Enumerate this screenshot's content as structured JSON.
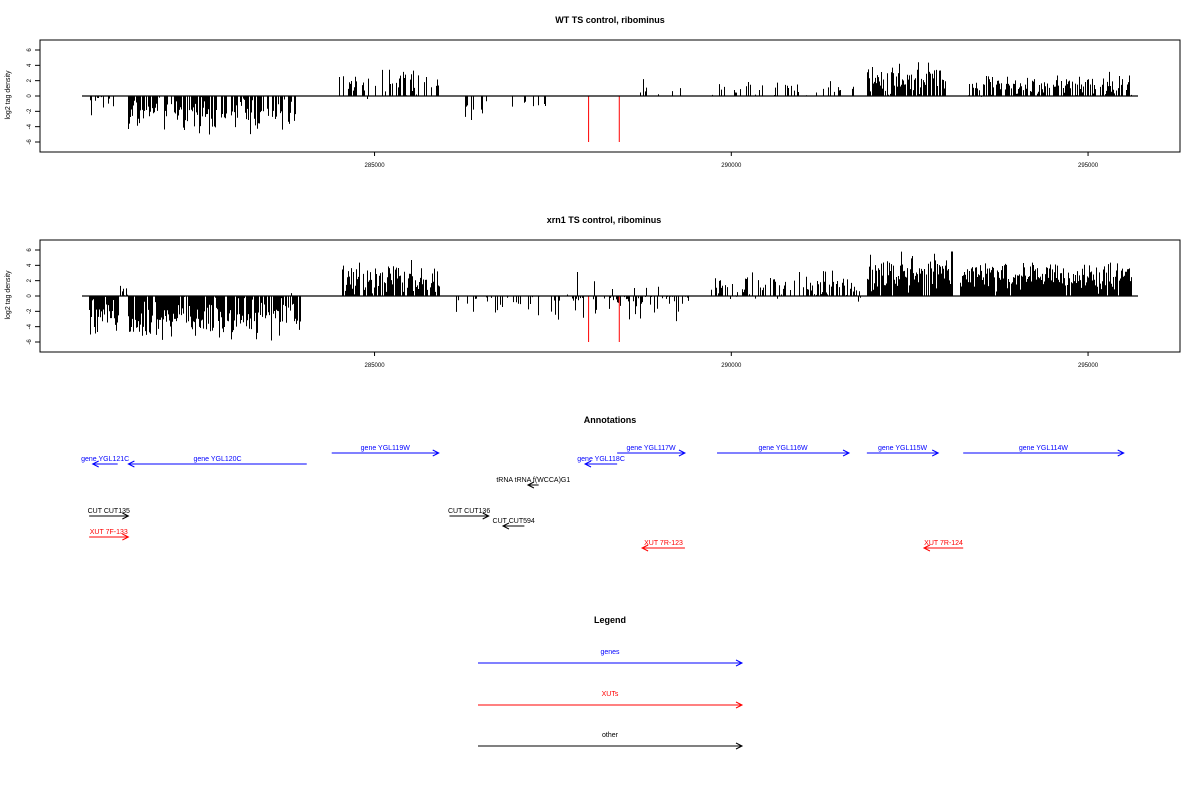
{
  "colors": {
    "gene": "#0000ff",
    "xut": "#ff0000",
    "other": "#000000",
    "marker": "#ff0000",
    "bar": "#000000"
  },
  "chart_data": [
    {
      "type": "bar",
      "title": "WT TS control, ribominus",
      "ylabel": "log2 tag density",
      "xlim": [
        280900,
        295700
      ],
      "ylim": [
        -6,
        6
      ],
      "yticks": [
        6,
        4,
        2,
        0,
        -2,
        -4,
        -6
      ],
      "xticks": [
        285000,
        290000,
        295000
      ],
      "grid": false,
      "markers": [
        288000,
        288430
      ],
      "segments": [
        {
          "x0": 281000,
          "x1": 281350,
          "density": 0.35,
          "mean": -1.2,
          "spread": 1.0
        },
        {
          "x0": 281550,
          "x1": 283900,
          "density": 0.75,
          "mean": -2.4,
          "spread": 1.6
        },
        {
          "x0": 284500,
          "x1": 285900,
          "density": 0.35,
          "mean": 1.6,
          "spread": 1.3
        },
        {
          "x0": 286250,
          "x1": 286600,
          "density": 0.25,
          "mean": -1.8,
          "spread": 0.9
        },
        {
          "x0": 286900,
          "x1": 287400,
          "density": 0.15,
          "mean": -1.0,
          "spread": 0.6
        },
        {
          "x0": 288650,
          "x1": 289300,
          "density": 0.12,
          "mean": 0.8,
          "spread": 0.6
        },
        {
          "x0": 289700,
          "x1": 291700,
          "density": 0.22,
          "mean": 1.1,
          "spread": 0.8
        },
        {
          "x0": 291900,
          "x1": 293000,
          "density": 0.85,
          "mean": 2.3,
          "spread": 1.4
        },
        {
          "x0": 293300,
          "x1": 295600,
          "density": 0.7,
          "mean": 1.4,
          "spread": 0.9
        }
      ]
    },
    {
      "type": "bar",
      "title": "xrn1 TS control, ribominus",
      "ylabel": "log2 tag density",
      "xlim": [
        280900,
        295700
      ],
      "ylim": [
        -6,
        6
      ],
      "yticks": [
        6,
        4,
        2,
        0,
        -2,
        -4,
        -6
      ],
      "xticks": [
        285000,
        290000,
        295000
      ],
      "grid": false,
      "markers": [
        288000,
        288430
      ],
      "segments": [
        {
          "x0": 281000,
          "x1": 281400,
          "density": 0.9,
          "mean": -2.0,
          "spread": 1.8
        },
        {
          "x0": 281400,
          "x1": 281550,
          "density": 0.5,
          "mean": 0.8,
          "spread": 0.8
        },
        {
          "x0": 281550,
          "x1": 283950,
          "density": 0.9,
          "mean": -2.8,
          "spread": 1.8
        },
        {
          "x0": 284550,
          "x1": 285900,
          "density": 0.85,
          "mean": 2.2,
          "spread": 1.4
        },
        {
          "x0": 286100,
          "x1": 287600,
          "density": 0.25,
          "mean": -1.0,
          "spread": 1.0
        },
        {
          "x0": 287700,
          "x1": 289400,
          "density": 0.45,
          "mean": -0.3,
          "spread": 1.8
        },
        {
          "x0": 289700,
          "x1": 291800,
          "density": 0.6,
          "mean": 1.2,
          "spread": 1.3
        },
        {
          "x0": 291900,
          "x1": 293100,
          "density": 0.95,
          "mean": 3.0,
          "spread": 1.6
        },
        {
          "x0": 293200,
          "x1": 295600,
          "density": 0.95,
          "mean": 2.6,
          "spread": 1.1
        }
      ]
    }
  ],
  "annotations": {
    "title": "Annotations",
    "features": [
      {
        "label": "gene YGL121C",
        "kind": "gene",
        "start": 281050,
        "end": 281400,
        "strand": "-",
        "row": 1
      },
      {
        "label": "gene YGL120C",
        "kind": "gene",
        "start": 281550,
        "end": 284050,
        "strand": "-",
        "row": 1
      },
      {
        "label": "gene YGL119W",
        "kind": "gene",
        "start": 284400,
        "end": 285900,
        "strand": "+",
        "row": 0
      },
      {
        "label": "gene YGL118C",
        "kind": "gene",
        "start": 287950,
        "end": 288400,
        "strand": "-",
        "row": 1
      },
      {
        "label": "gene YGL117W",
        "kind": "gene",
        "start": 288400,
        "end": 289350,
        "strand": "+",
        "row": 0
      },
      {
        "label": "gene YGL116W",
        "kind": "gene",
        "start": 289800,
        "end": 291650,
        "strand": "+",
        "row": 0
      },
      {
        "label": "gene YGL115W",
        "kind": "gene",
        "start": 291900,
        "end": 292900,
        "strand": "+",
        "row": 0
      },
      {
        "label": "gene YGL114W",
        "kind": "gene",
        "start": 293250,
        "end": 295500,
        "strand": "+",
        "row": 0
      },
      {
        "label": "tRNA tRNA f(WCCA)G1",
        "kind": "other",
        "start": 287150,
        "end": 287300,
        "strand": "-",
        "row": 2
      },
      {
        "label": "CUT CUT135",
        "kind": "other",
        "start": 281000,
        "end": 281550,
        "strand": "+",
        "row": 3
      },
      {
        "label": "CUT CUT136",
        "kind": "other",
        "start": 286050,
        "end": 286600,
        "strand": "+",
        "row": 3
      },
      {
        "label": "CUT CUT594",
        "kind": "other",
        "start": 286800,
        "end": 287100,
        "strand": "-",
        "row": 4
      },
      {
        "label": "XUT 7F-133",
        "kind": "xut",
        "start": 281000,
        "end": 281550,
        "strand": "+",
        "row": 5
      },
      {
        "label": "XUT 7R-123",
        "kind": "xut",
        "start": 288750,
        "end": 289350,
        "strand": "-",
        "row": 6
      },
      {
        "label": "XUT 7R-124",
        "kind": "xut",
        "start": 292700,
        "end": 293250,
        "strand": "-",
        "row": 6
      }
    ]
  },
  "legend": {
    "title": "Legend",
    "items": [
      {
        "label": "genes",
        "kind": "gene"
      },
      {
        "label": "XUTs",
        "kind": "xut"
      },
      {
        "label": "other",
        "kind": "other"
      }
    ]
  }
}
